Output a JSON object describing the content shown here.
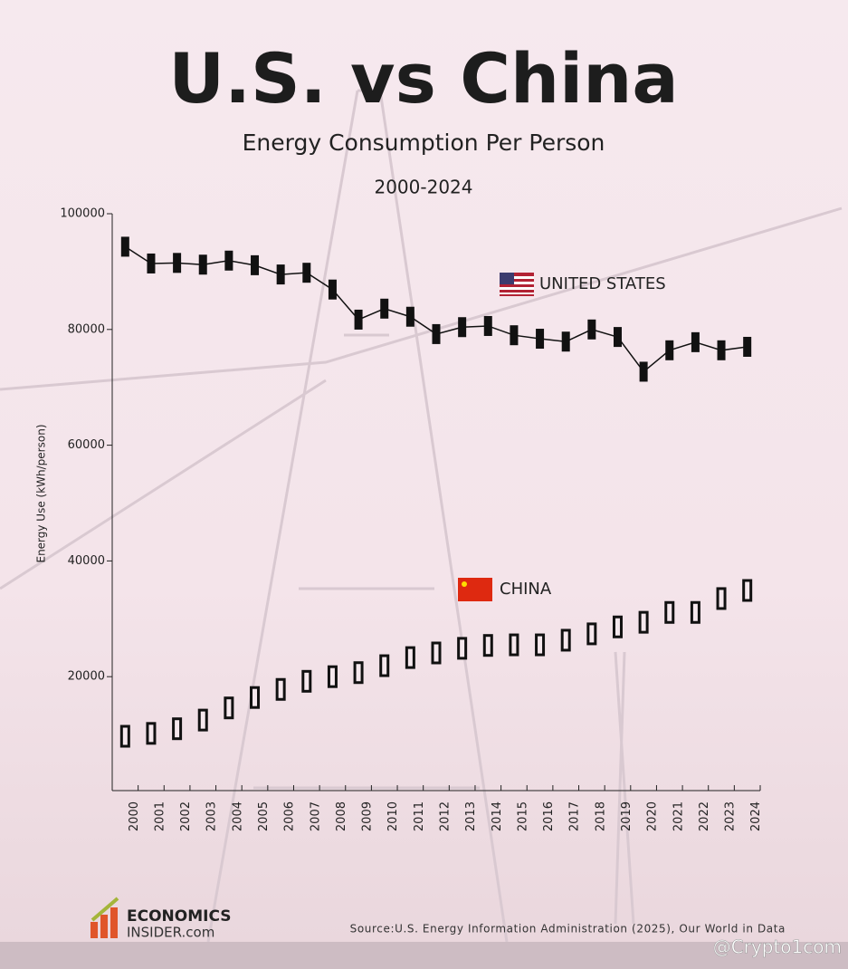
{
  "chart_data": {
    "type": "box-line",
    "title": "U.S. vs China",
    "subtitle": "Energy Consumption Per Person",
    "period": "2000-2024",
    "y_label": "Energy Use (kWh/person)",
    "categories": [
      "2000",
      "2001",
      "2002",
      "2003",
      "2004",
      "2005",
      "2006",
      "2007",
      "2008",
      "2009",
      "2010",
      "2011",
      "2012",
      "2013",
      "2014",
      "2015",
      "2016",
      "2017",
      "2018",
      "2019",
      "2020",
      "2021",
      "2022",
      "2023",
      "2024"
    ],
    "ylim": [
      0,
      100000
    ],
    "yticks": [
      20000,
      40000,
      60000,
      80000,
      100000
    ],
    "series": [
      {
        "name": "UNITED STATES",
        "color": "#111111",
        "style": "filled",
        "values": [
          94300,
          91400,
          91500,
          91200,
          91900,
          91100,
          89500,
          89800,
          86900,
          81700,
          83600,
          82200,
          79200,
          80400,
          80600,
          79000,
          78400,
          77900,
          80000,
          78700,
          72700,
          76400,
          77800,
          76400,
          77000
        ]
      },
      {
        "name": "CHINA",
        "color": "#111111",
        "style": "hollow",
        "values": [
          9700,
          10200,
          11000,
          12500,
          14600,
          16400,
          17800,
          19200,
          20000,
          20700,
          21900,
          23300,
          24100,
          24900,
          25400,
          25500,
          25500,
          26300,
          27400,
          28600,
          29400,
          31100,
          31100,
          33500,
          34900
        ]
      }
    ],
    "source": "Source:U.S. Energy Information Administration (2025), Our World in Data",
    "logo": [
      "ECONOMICS",
      "INSIDER.com"
    ],
    "watermark": "@Crypto1com"
  }
}
